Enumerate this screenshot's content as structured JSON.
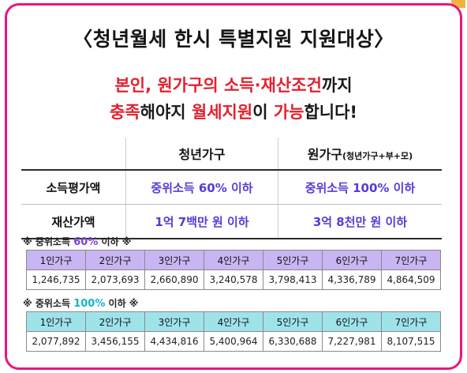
{
  "title": "〈청년월세 한시 특별지원 지원대상〉",
  "subtitle": {
    "line1_red": "본인, 원가구의 소득·재산조건",
    "line1_black": "까지",
    "line2_red1": "충족",
    "line2_black1": "해야지 ",
    "line2_red2": "월세지원",
    "line2_black2": "이 ",
    "line2_red3": "가능",
    "line2_black3": "합니다!"
  },
  "comparison": {
    "col1": "청년가구",
    "col2_main": "원가구",
    "col2_small": "(청년가구+부+모)",
    "rows": [
      {
        "label": "소득평가액",
        "youth": "중위소득 60% 이하",
        "origin": "중위소득 100% 이하"
      },
      {
        "label": "재산가액",
        "youth": "1억 7백만 원 이하",
        "origin": "3억 8천만 원 이하"
      }
    ]
  },
  "table1": {
    "note_prefix": "※ 중위소득 ",
    "note_pct": "60%",
    "note_suffix": " 이하 ※",
    "headers": [
      "1인가구",
      "2인가구",
      "3인가구",
      "4인가구",
      "5인가구",
      "6인가구",
      "7인가구"
    ],
    "values": [
      "1,246,735",
      "2,073,693",
      "2,660,890",
      "3,240,578",
      "3,798,413",
      "4,336,789",
      "4,864,509"
    ]
  },
  "table2": {
    "note_prefix": "※ 중위소득 ",
    "note_pct": "100%",
    "note_suffix": " 이하 ※",
    "headers": [
      "1인가구",
      "2인가구",
      "3인가구",
      "4인가구",
      "5인가구",
      "6인가구",
      "7인가구"
    ],
    "values": [
      "2,077,892",
      "3,456,155",
      "4,434,816",
      "5,400,964",
      "6,330,688",
      "7,227,981",
      "8,107,515"
    ]
  },
  "colors": {
    "frame": "#e8177b",
    "red_text": "#e5202e",
    "value_purple": "#5a3ad6",
    "table1_header": "#c9b5f2",
    "table2_header": "#9fe3ea"
  }
}
